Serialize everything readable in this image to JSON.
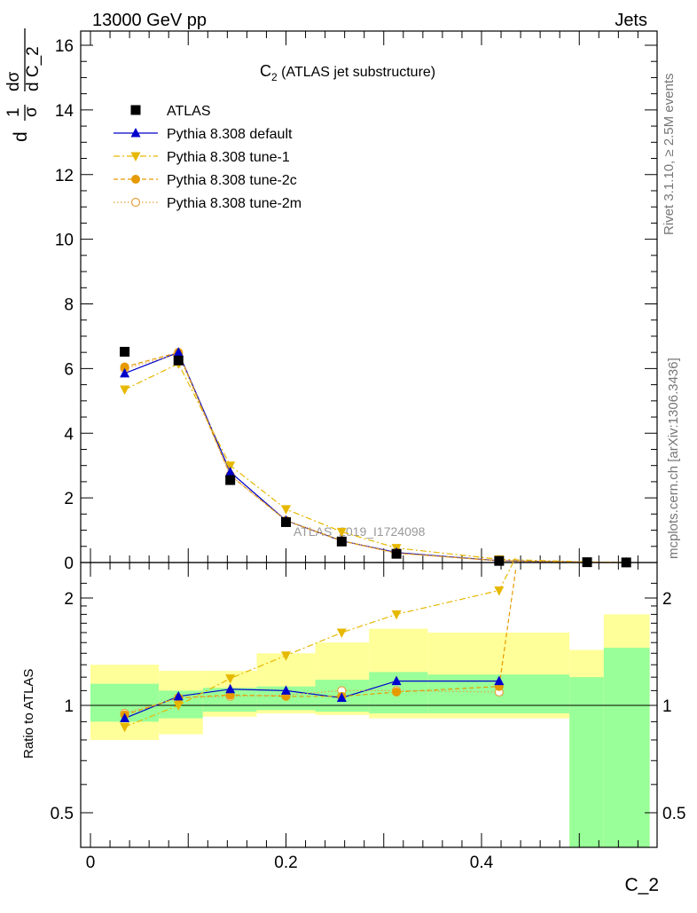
{
  "header": {
    "left": "13000 GeV pp",
    "right": "Jets"
  },
  "side": {
    "rivet": "Rivet 3.1.10, ≥ 2.5M events",
    "mcplots": "mcplots.cern.ch [arXiv:1306.3436]"
  },
  "watermark": "ATLAS_2019_I1724098",
  "chart_data": [
    {
      "type": "scatter",
      "title": "C₂ (ATLAS jet substructure)",
      "title_main": "C",
      "title_sub": "2",
      "title_rest": " (ATLAS jet substructure)",
      "ylabel_parts": [
        "d",
        "1",
        "σ",
        "dσ",
        "d C_2"
      ],
      "xlabel": "C_2",
      "ylim": [
        0,
        16.5
      ],
      "xlim": [
        -0.01,
        0.58
      ],
      "yticks": [
        "0",
        "2",
        "4",
        "6",
        "8",
        "10",
        "12",
        "14",
        "16"
      ],
      "legend_position": "top-left",
      "x": [
        0.035,
        0.09,
        0.143,
        0.2,
        0.257,
        0.313,
        0.418,
        0.508,
        0.548
      ],
      "series": [
        {
          "name": "ATLAS",
          "color": "#000000",
          "marker": "square",
          "values": [
            6.52,
            6.25,
            2.55,
            1.25,
            0.65,
            0.27,
            0.05,
            0.01,
            0.003
          ]
        },
        {
          "name": "Pythia 8.308 default",
          "color": "#0000cc",
          "marker": "triangle-up",
          "line": "solid",
          "values": [
            5.85,
            6.5,
            2.8,
            1.3,
            0.67,
            0.31,
            0.055,
            0.01,
            0.003
          ]
        },
        {
          "name": "Pythia 8.308 tune-1",
          "color": "#e6b800",
          "marker": "triangle-down",
          "line": "dashdot",
          "values": [
            5.35,
            6.15,
            3.0,
            1.65,
            0.95,
            0.45,
            0.1,
            0.02,
            0.005
          ]
        },
        {
          "name": "Pythia 8.308 tune-2c",
          "color": "#e69a00",
          "marker": "circle",
          "line": "dashed",
          "values": [
            6.05,
            6.5,
            2.7,
            1.3,
            0.67,
            0.29,
            0.055,
            0.012,
            0.004
          ]
        },
        {
          "name": "Pythia 8.308 tune-2m",
          "color": "#e6a040",
          "marker": "open-circle",
          "line": "dotted",
          "values": [
            6.0,
            6.45,
            2.7,
            1.3,
            0.68,
            0.29,
            0.052,
            0.011,
            0.003
          ]
        }
      ]
    },
    {
      "type": "scatter",
      "ylabel": "Ratio to ATLAS",
      "xlabel": "C_2",
      "yscale": "log",
      "ylim": [
        0.4,
        2.4
      ],
      "xlim": [
        -0.01,
        0.58
      ],
      "yticks": [
        0.5,
        1,
        2
      ],
      "ytick_labels": [
        "0.5",
        "1",
        "2"
      ],
      "xticks": [
        0,
        0.2,
        0.4
      ],
      "xtick_labels": [
        "0",
        "0.2",
        "0.4"
      ],
      "x": [
        0.035,
        0.09,
        0.143,
        0.2,
        0.257,
        0.313,
        0.418
      ],
      "bands": {
        "bins": [
          [
            0.0,
            0.07
          ],
          [
            0.07,
            0.115
          ],
          [
            0.115,
            0.17
          ],
          [
            0.17,
            0.23
          ],
          [
            0.23,
            0.285
          ],
          [
            0.285,
            0.345
          ],
          [
            0.345,
            0.49
          ],
          [
            0.49,
            0.525
          ],
          [
            0.525,
            0.572
          ]
        ],
        "total": [
          [
            0.8,
            1.3
          ],
          [
            0.83,
            1.25
          ],
          [
            0.93,
            1.25
          ],
          [
            0.95,
            1.4
          ],
          [
            0.94,
            1.5
          ],
          [
            0.92,
            1.64
          ],
          [
            0.92,
            1.6
          ],
          [
            0.4,
            1.43
          ],
          [
            0.4,
            1.8
          ]
        ],
        "stat": [
          [
            0.9,
            1.15
          ],
          [
            0.92,
            1.1
          ],
          [
            0.96,
            1.12
          ],
          [
            0.97,
            1.13
          ],
          [
            0.96,
            1.18
          ],
          [
            0.95,
            1.24
          ],
          [
            0.95,
            1.22
          ],
          [
            0.4,
            1.2
          ],
          [
            0.4,
            1.45
          ]
        ],
        "total_color": "#ffff99",
        "stat_color": "#99ff99"
      },
      "series": [
        {
          "name": "Pythia 8.308 default",
          "values": [
            0.92,
            1.06,
            1.11,
            1.1,
            1.05,
            1.17,
            1.17
          ]
        },
        {
          "name": "Pythia 8.308 tune-1",
          "values": [
            0.87,
            1.0,
            1.19,
            1.38,
            1.6,
            1.8,
            2.1
          ]
        },
        {
          "name": "Pythia 8.308 tune-2c",
          "values": [
            0.94,
            1.05,
            1.07,
            1.06,
            1.06,
            1.09,
            1.13
          ]
        },
        {
          "name": "Pythia 8.308 tune-2m",
          "values": [
            0.95,
            1.05,
            1.06,
            1.07,
            1.1,
            1.1,
            1.09
          ]
        }
      ],
      "tune1_line_tail_y": 2.6
    }
  ]
}
